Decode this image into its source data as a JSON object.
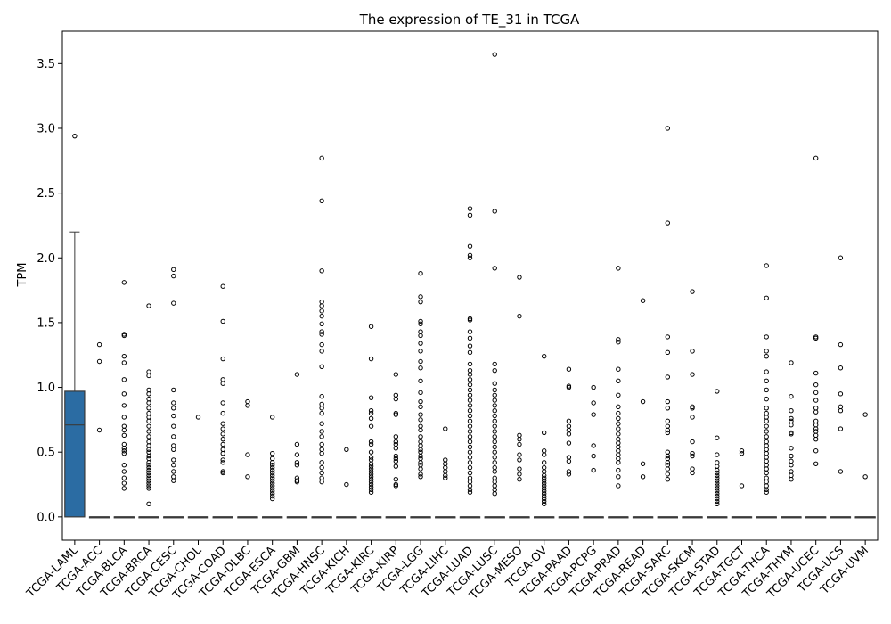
{
  "chart_data": {
    "type": "box",
    "title": "The expression of TE_31 in TCGA",
    "ylabel": "TPM",
    "xlabel": "",
    "ylim": [
      -0.18,
      3.75
    ],
    "yticks": [
      0.0,
      0.5,
      1.0,
      1.5,
      2.0,
      2.5,
      3.0,
      3.5
    ],
    "ytick_labels": [
      "0.0",
      "0.5",
      "1.0",
      "1.5",
      "2.0",
      "2.5",
      "3.0",
      "3.5"
    ],
    "box_color": "#2b6ca3",
    "categories": [
      "TCGA-LAML",
      "TCGA-ACC",
      "TCGA-BLCA",
      "TCGA-BRCA",
      "TCGA-CESC",
      "TCGA-CHOL",
      "TCGA-COAD",
      "TCGA-DLBC",
      "TCGA-ESCA",
      "TCGA-GBM",
      "TCGA-HNSC",
      "TCGA-KICH",
      "TCGA-KIRC",
      "TCGA-KIRP",
      "TCGA-LGG",
      "TCGA-LIHC",
      "TCGA-LUAD",
      "TCGA-LUSC",
      "TCGA-MESO",
      "TCGA-OV",
      "TCGA-PAAD",
      "TCGA-PCPG",
      "TCGA-PRAD",
      "TCGA-READ",
      "TCGA-SARC",
      "TCGA-SKCM",
      "TCGA-STAD",
      "TCGA-TGCT",
      "TCGA-THCA",
      "TCGA-THYM",
      "TCGA-UCEC",
      "TCGA-UCS",
      "TCGA-UVM"
    ],
    "boxes": [
      {
        "q1": 0.0,
        "median": 0.71,
        "q3": 0.97,
        "whisker_low": 0.0,
        "whisker_high": 2.2,
        "outliers": [
          2.94
        ]
      },
      {
        "q1": 0,
        "median": 0,
        "q3": 0,
        "whisker_low": 0,
        "whisker_high": 0,
        "outliers": [
          1.33,
          1.2,
          0.67
        ]
      },
      {
        "q1": 0,
        "median": 0,
        "q3": 0,
        "whisker_low": 0,
        "whisker_high": 0,
        "outliers": [
          1.81,
          1.41,
          1.4,
          1.24,
          1.19,
          1.06,
          0.95,
          0.86,
          0.77,
          0.7,
          0.67,
          0.63,
          0.56,
          0.53,
          0.51,
          0.49,
          0.4,
          0.35,
          0.3,
          0.26,
          0.22
        ]
      },
      {
        "q1": 0,
        "median": 0,
        "q3": 0,
        "whisker_low": 0,
        "whisker_high": 0,
        "outliers": [
          1.63,
          1.12,
          1.09,
          0.98,
          0.95,
          0.91,
          0.88,
          0.84,
          0.8,
          0.77,
          0.74,
          0.7,
          0.66,
          0.62,
          0.58,
          0.55,
          0.52,
          0.5,
          0.47,
          0.45,
          0.42,
          0.4,
          0.38,
          0.36,
          0.34,
          0.32,
          0.3,
          0.28,
          0.26,
          0.24,
          0.22,
          0.1
        ]
      },
      {
        "q1": 0,
        "median": 0,
        "q3": 0,
        "whisker_low": 0,
        "whisker_high": 0,
        "outliers": [
          1.91,
          1.86,
          1.65,
          0.98,
          0.88,
          0.84,
          0.78,
          0.7,
          0.62,
          0.55,
          0.52,
          0.44,
          0.4,
          0.35,
          0.31,
          0.28
        ]
      },
      {
        "q1": 0,
        "median": 0,
        "q3": 0,
        "whisker_low": 0,
        "whisker_high": 0,
        "outliers": [
          0.77
        ]
      },
      {
        "q1": 0,
        "median": 0,
        "q3": 0,
        "whisker_low": 0,
        "whisker_high": 0,
        "outliers": [
          1.78,
          1.51,
          1.22,
          1.06,
          1.03,
          0.88,
          0.8,
          0.72,
          0.68,
          0.64,
          0.6,
          0.56,
          0.52,
          0.49,
          0.44,
          0.42,
          0.35,
          0.34
        ]
      },
      {
        "q1": 0,
        "median": 0,
        "q3": 0,
        "whisker_low": 0,
        "whisker_high": 0,
        "outliers": [
          0.89,
          0.86,
          0.48,
          0.31
        ]
      },
      {
        "q1": 0,
        "median": 0,
        "q3": 0,
        "whisker_low": 0,
        "whisker_high": 0,
        "outliers": [
          0.77,
          0.49,
          0.45,
          0.42,
          0.4,
          0.38,
          0.36,
          0.34,
          0.32,
          0.3,
          0.28,
          0.26,
          0.24,
          0.22,
          0.2,
          0.18,
          0.16,
          0.14
        ]
      },
      {
        "q1": 0,
        "median": 0,
        "q3": 0,
        "whisker_low": 0,
        "whisker_high": 0,
        "outliers": [
          1.1,
          0.56,
          0.48,
          0.42,
          0.4,
          0.3,
          0.28,
          0.27
        ]
      },
      {
        "q1": 0,
        "median": 0,
        "q3": 0,
        "whisker_low": 0,
        "whisker_high": 0,
        "outliers": [
          2.77,
          2.44,
          1.9,
          1.66,
          1.63,
          1.59,
          1.55,
          1.49,
          1.43,
          1.41,
          1.33,
          1.28,
          1.16,
          0.93,
          0.87,
          0.84,
          0.8,
          0.72,
          0.66,
          0.62,
          0.56,
          0.52,
          0.49,
          0.42,
          0.38,
          0.34,
          0.3,
          0.27
        ]
      },
      {
        "q1": 0,
        "median": 0,
        "q3": 0,
        "whisker_low": 0,
        "whisker_high": 0,
        "outliers": [
          0.52,
          0.25
        ]
      },
      {
        "q1": 0,
        "median": 0,
        "q3": 0,
        "whisker_low": 0,
        "whisker_high": 0,
        "outliers": [
          1.47,
          1.22,
          0.92,
          0.82,
          0.8,
          0.76,
          0.7,
          0.58,
          0.56,
          0.5,
          0.46,
          0.44,
          0.41,
          0.39,
          0.37,
          0.35,
          0.33,
          0.31,
          0.29,
          0.27,
          0.25,
          0.23,
          0.21,
          0.19
        ]
      },
      {
        "q1": 0,
        "median": 0,
        "q3": 0,
        "whisker_low": 0,
        "whisker_high": 0,
        "outliers": [
          1.1,
          0.94,
          0.91,
          0.8,
          0.79,
          0.62,
          0.58,
          0.56,
          0.53,
          0.47,
          0.45,
          0.43,
          0.39,
          0.29,
          0.25,
          0.24
        ]
      },
      {
        "q1": 0,
        "median": 0,
        "q3": 0,
        "whisker_low": 0,
        "whisker_high": 0,
        "outliers": [
          1.88,
          1.7,
          1.66,
          1.51,
          1.49,
          1.43,
          1.4,
          1.34,
          1.28,
          1.2,
          1.15,
          1.05,
          0.96,
          0.89,
          0.85,
          0.79,
          0.75,
          0.7,
          0.67,
          0.62,
          0.58,
          0.55,
          0.52,
          0.5,
          0.47,
          0.45,
          0.42,
          0.4,
          0.37,
          0.33,
          0.31
        ]
      },
      {
        "q1": 0,
        "median": 0,
        "q3": 0,
        "whisker_low": 0,
        "whisker_high": 0,
        "outliers": [
          0.68,
          0.44,
          0.41,
          0.38,
          0.35,
          0.32,
          0.3
        ]
      },
      {
        "q1": 0,
        "median": 0,
        "q3": 0,
        "whisker_low": 0,
        "whisker_high": 0,
        "outliers": [
          2.38,
          2.33,
          2.09,
          2.02,
          2.0,
          1.53,
          1.52,
          1.43,
          1.38,
          1.32,
          1.27,
          1.18,
          1.13,
          1.1,
          1.06,
          1.02,
          0.98,
          0.94,
          0.9,
          0.86,
          0.82,
          0.78,
          0.74,
          0.7,
          0.66,
          0.62,
          0.58,
          0.54,
          0.5,
          0.46,
          0.42,
          0.38,
          0.34,
          0.3,
          0.27,
          0.24,
          0.21,
          0.19
        ]
      },
      {
        "q1": 0,
        "median": 0,
        "q3": 0,
        "whisker_low": 0,
        "whisker_high": 0,
        "outliers": [
          3.57,
          2.36,
          1.92,
          1.18,
          1.13,
          1.03,
          0.98,
          0.94,
          0.9,
          0.86,
          0.82,
          0.78,
          0.74,
          0.7,
          0.66,
          0.62,
          0.58,
          0.54,
          0.5,
          0.46,
          0.42,
          0.38,
          0.35,
          0.3,
          0.27,
          0.24,
          0.21,
          0.18
        ]
      },
      {
        "q1": 0,
        "median": 0,
        "q3": 0,
        "whisker_low": 0,
        "whisker_high": 0,
        "outliers": [
          1.85,
          1.55,
          0.63,
          0.6,
          0.56,
          0.48,
          0.44,
          0.37,
          0.33,
          0.29
        ]
      },
      {
        "q1": 0,
        "median": 0,
        "q3": 0,
        "whisker_low": 0,
        "whisker_high": 0,
        "outliers": [
          1.24,
          0.65,
          0.51,
          0.48,
          0.42,
          0.38,
          0.35,
          0.32,
          0.3,
          0.28,
          0.26,
          0.24,
          0.22,
          0.2,
          0.18,
          0.16,
          0.14,
          0.12,
          0.1
        ]
      },
      {
        "q1": 0,
        "median": 0,
        "q3": 0,
        "whisker_low": 0,
        "whisker_high": 0,
        "outliers": [
          1.14,
          1.01,
          1.0,
          0.74,
          0.7,
          0.67,
          0.64,
          0.57,
          0.46,
          0.43,
          0.35,
          0.33
        ]
      },
      {
        "q1": 0,
        "median": 0,
        "q3": 0,
        "whisker_low": 0,
        "whisker_high": 0,
        "outliers": [
          1.0,
          0.88,
          0.79,
          0.55,
          0.47,
          0.36
        ]
      },
      {
        "q1": 0,
        "median": 0,
        "q3": 0,
        "whisker_low": 0,
        "whisker_high": 0,
        "outliers": [
          1.92,
          1.37,
          1.35,
          1.14,
          1.05,
          0.94,
          0.85,
          0.8,
          0.76,
          0.72,
          0.68,
          0.64,
          0.6,
          0.57,
          0.54,
          0.51,
          0.48,
          0.45,
          0.42,
          0.36,
          0.31,
          0.24
        ]
      },
      {
        "q1": 0,
        "median": 0,
        "q3": 0,
        "whisker_low": 0,
        "whisker_high": 0,
        "outliers": [
          1.67,
          0.89,
          0.41,
          0.31
        ]
      },
      {
        "q1": 0,
        "median": 0,
        "q3": 0,
        "whisker_low": 0,
        "whisker_high": 0,
        "outliers": [
          3.0,
          2.27,
          1.39,
          1.27,
          1.08,
          0.89,
          0.84,
          0.74,
          0.7,
          0.67,
          0.65,
          0.5,
          0.47,
          0.45,
          0.42,
          0.4,
          0.37,
          0.33,
          0.29
        ]
      },
      {
        "q1": 0,
        "median": 0,
        "q3": 0,
        "whisker_low": 0,
        "whisker_high": 0,
        "outliers": [
          1.74,
          1.28,
          1.1,
          0.85,
          0.84,
          0.77,
          0.58,
          0.49,
          0.47,
          0.37,
          0.34
        ]
      },
      {
        "q1": 0,
        "median": 0,
        "q3": 0,
        "whisker_low": 0,
        "whisker_high": 0,
        "outliers": [
          0.97,
          0.61,
          0.48,
          0.42,
          0.39,
          0.36,
          0.34,
          0.32,
          0.3,
          0.28,
          0.26,
          0.24,
          0.22,
          0.2,
          0.18,
          0.16,
          0.14,
          0.12,
          0.1
        ]
      },
      {
        "q1": 0,
        "median": 0,
        "q3": 0,
        "whisker_low": 0,
        "whisker_high": 0,
        "outliers": [
          0.51,
          0.49,
          0.24
        ]
      },
      {
        "q1": 0,
        "median": 0,
        "q3": 0,
        "whisker_low": 0,
        "whisker_high": 0,
        "outliers": [
          1.94,
          1.69,
          1.39,
          1.28,
          1.24,
          1.12,
          1.05,
          0.98,
          0.91,
          0.84,
          0.8,
          0.77,
          0.74,
          0.7,
          0.66,
          0.62,
          0.58,
          0.55,
          0.52,
          0.49,
          0.46,
          0.43,
          0.4,
          0.37,
          0.34,
          0.3,
          0.27,
          0.24,
          0.21,
          0.19
        ]
      },
      {
        "q1": 0,
        "median": 0,
        "q3": 0,
        "whisker_low": 0,
        "whisker_high": 0,
        "outliers": [
          1.19,
          0.93,
          0.82,
          0.76,
          0.74,
          0.71,
          0.65,
          0.64,
          0.53,
          0.47,
          0.43,
          0.4,
          0.35,
          0.32,
          0.29
        ]
      },
      {
        "q1": 0,
        "median": 0,
        "q3": 0,
        "whisker_low": 0,
        "whisker_high": 0,
        "outliers": [
          2.77,
          1.39,
          1.38,
          1.11,
          1.02,
          0.96,
          0.9,
          0.84,
          0.81,
          0.74,
          0.71,
          0.68,
          0.66,
          0.63,
          0.6,
          0.51,
          0.41
        ]
      },
      {
        "q1": 0,
        "median": 0,
        "q3": 0,
        "whisker_low": 0,
        "whisker_high": 0,
        "outliers": [
          2.0,
          1.33,
          1.15,
          0.95,
          0.85,
          0.82,
          0.68,
          0.35
        ]
      },
      {
        "q1": 0,
        "median": 0,
        "q3": 0,
        "whisker_low": 0,
        "whisker_high": 0,
        "outliers": [
          0.79,
          0.31
        ]
      }
    ]
  }
}
